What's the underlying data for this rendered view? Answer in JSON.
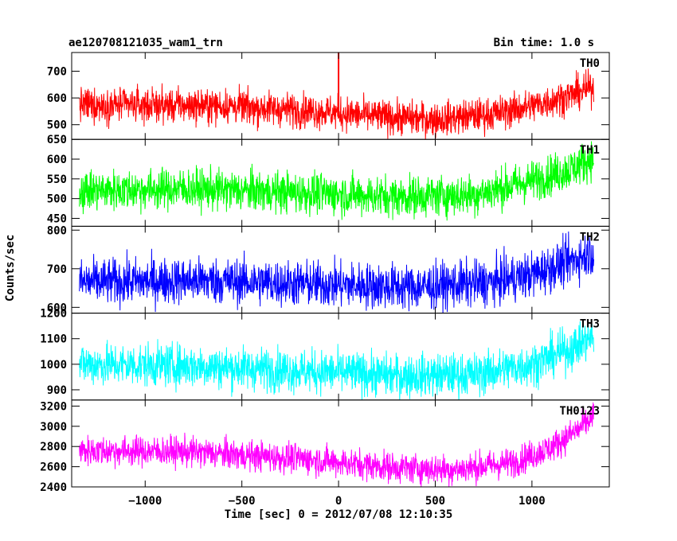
{
  "header": {
    "title": "ae120708121035_wam1_trn",
    "bin_time": "Bin time: 1.0 s"
  },
  "chart_data": {
    "type": "line",
    "title": "ae120708121035_wam1_trn",
    "xlabel": "Time [sec] 0 = 2012/07/08 12:10:35",
    "ylabel": "Counts/sec",
    "xlim": [
      -1380,
      1400
    ],
    "x_ticks": [
      -1000,
      -500,
      0,
      500,
      1000
    ],
    "x_tick_labels": [
      "−1000",
      "−500",
      "0",
      "500",
      "1000"
    ],
    "x_data_range": [
      -1340,
      1320
    ],
    "grid": false,
    "panels": [
      {
        "name": "TH0",
        "color": "#ff0000",
        "ylim": [
          445,
          770
        ],
        "yticks": [
          500,
          600,
          700
        ],
        "baseline": [
          [
            -1340,
            575
          ],
          [
            -600,
            570
          ],
          [
            -100,
            550
          ],
          [
            200,
            530
          ],
          [
            500,
            520
          ],
          [
            800,
            540
          ],
          [
            1000,
            570
          ],
          [
            1200,
            610
          ],
          [
            1320,
            640
          ]
        ],
        "noise": 32,
        "spike": {
          "x": 0,
          "y": 770
        }
      },
      {
        "name": "TH1",
        "color": "#00ff00",
        "ylim": [
          430,
          650
        ],
        "yticks": [
          450,
          500,
          550,
          600,
          650
        ],
        "baseline": [
          [
            -1340,
            520
          ],
          [
            -800,
            525
          ],
          [
            -200,
            515
          ],
          [
            300,
            505
          ],
          [
            700,
            510
          ],
          [
            1000,
            545
          ],
          [
            1200,
            575
          ],
          [
            1320,
            605
          ]
        ],
        "noise": 26
      },
      {
        "name": "TH2",
        "color": "#0000ff",
        "ylim": [
          585,
          810
        ],
        "yticks": [
          600,
          700,
          800
        ],
        "baseline": [
          [
            -1340,
            665
          ],
          [
            -700,
            670
          ],
          [
            -100,
            660
          ],
          [
            400,
            652
          ],
          [
            800,
            665
          ],
          [
            1000,
            685
          ],
          [
            1200,
            720
          ],
          [
            1320,
            745
          ]
        ],
        "noise": 30
      },
      {
        "name": "TH3",
        "color": "#00ffff",
        "ylim": [
          860,
          1200
        ],
        "yticks": [
          900,
          1000,
          1100,
          1200
        ],
        "baseline": [
          [
            -1340,
            1000
          ],
          [
            -800,
            995
          ],
          [
            -200,
            975
          ],
          [
            300,
            955
          ],
          [
            700,
            960
          ],
          [
            1000,
            1000
          ],
          [
            1200,
            1060
          ],
          [
            1320,
            1110
          ]
        ],
        "noise": 42
      },
      {
        "name": "TH0123",
        "color": "#ff00ff",
        "ylim": [
          2400,
          3260
        ],
        "yticks": [
          2400,
          2600,
          2800,
          3000,
          3200
        ],
        "baseline": [
          [
            -1340,
            2760
          ],
          [
            -800,
            2750
          ],
          [
            -200,
            2680
          ],
          [
            300,
            2590
          ],
          [
            600,
            2570
          ],
          [
            900,
            2640
          ],
          [
            1100,
            2790
          ],
          [
            1250,
            2980
          ],
          [
            1320,
            3100
          ]
        ],
        "noise": 75
      }
    ]
  }
}
